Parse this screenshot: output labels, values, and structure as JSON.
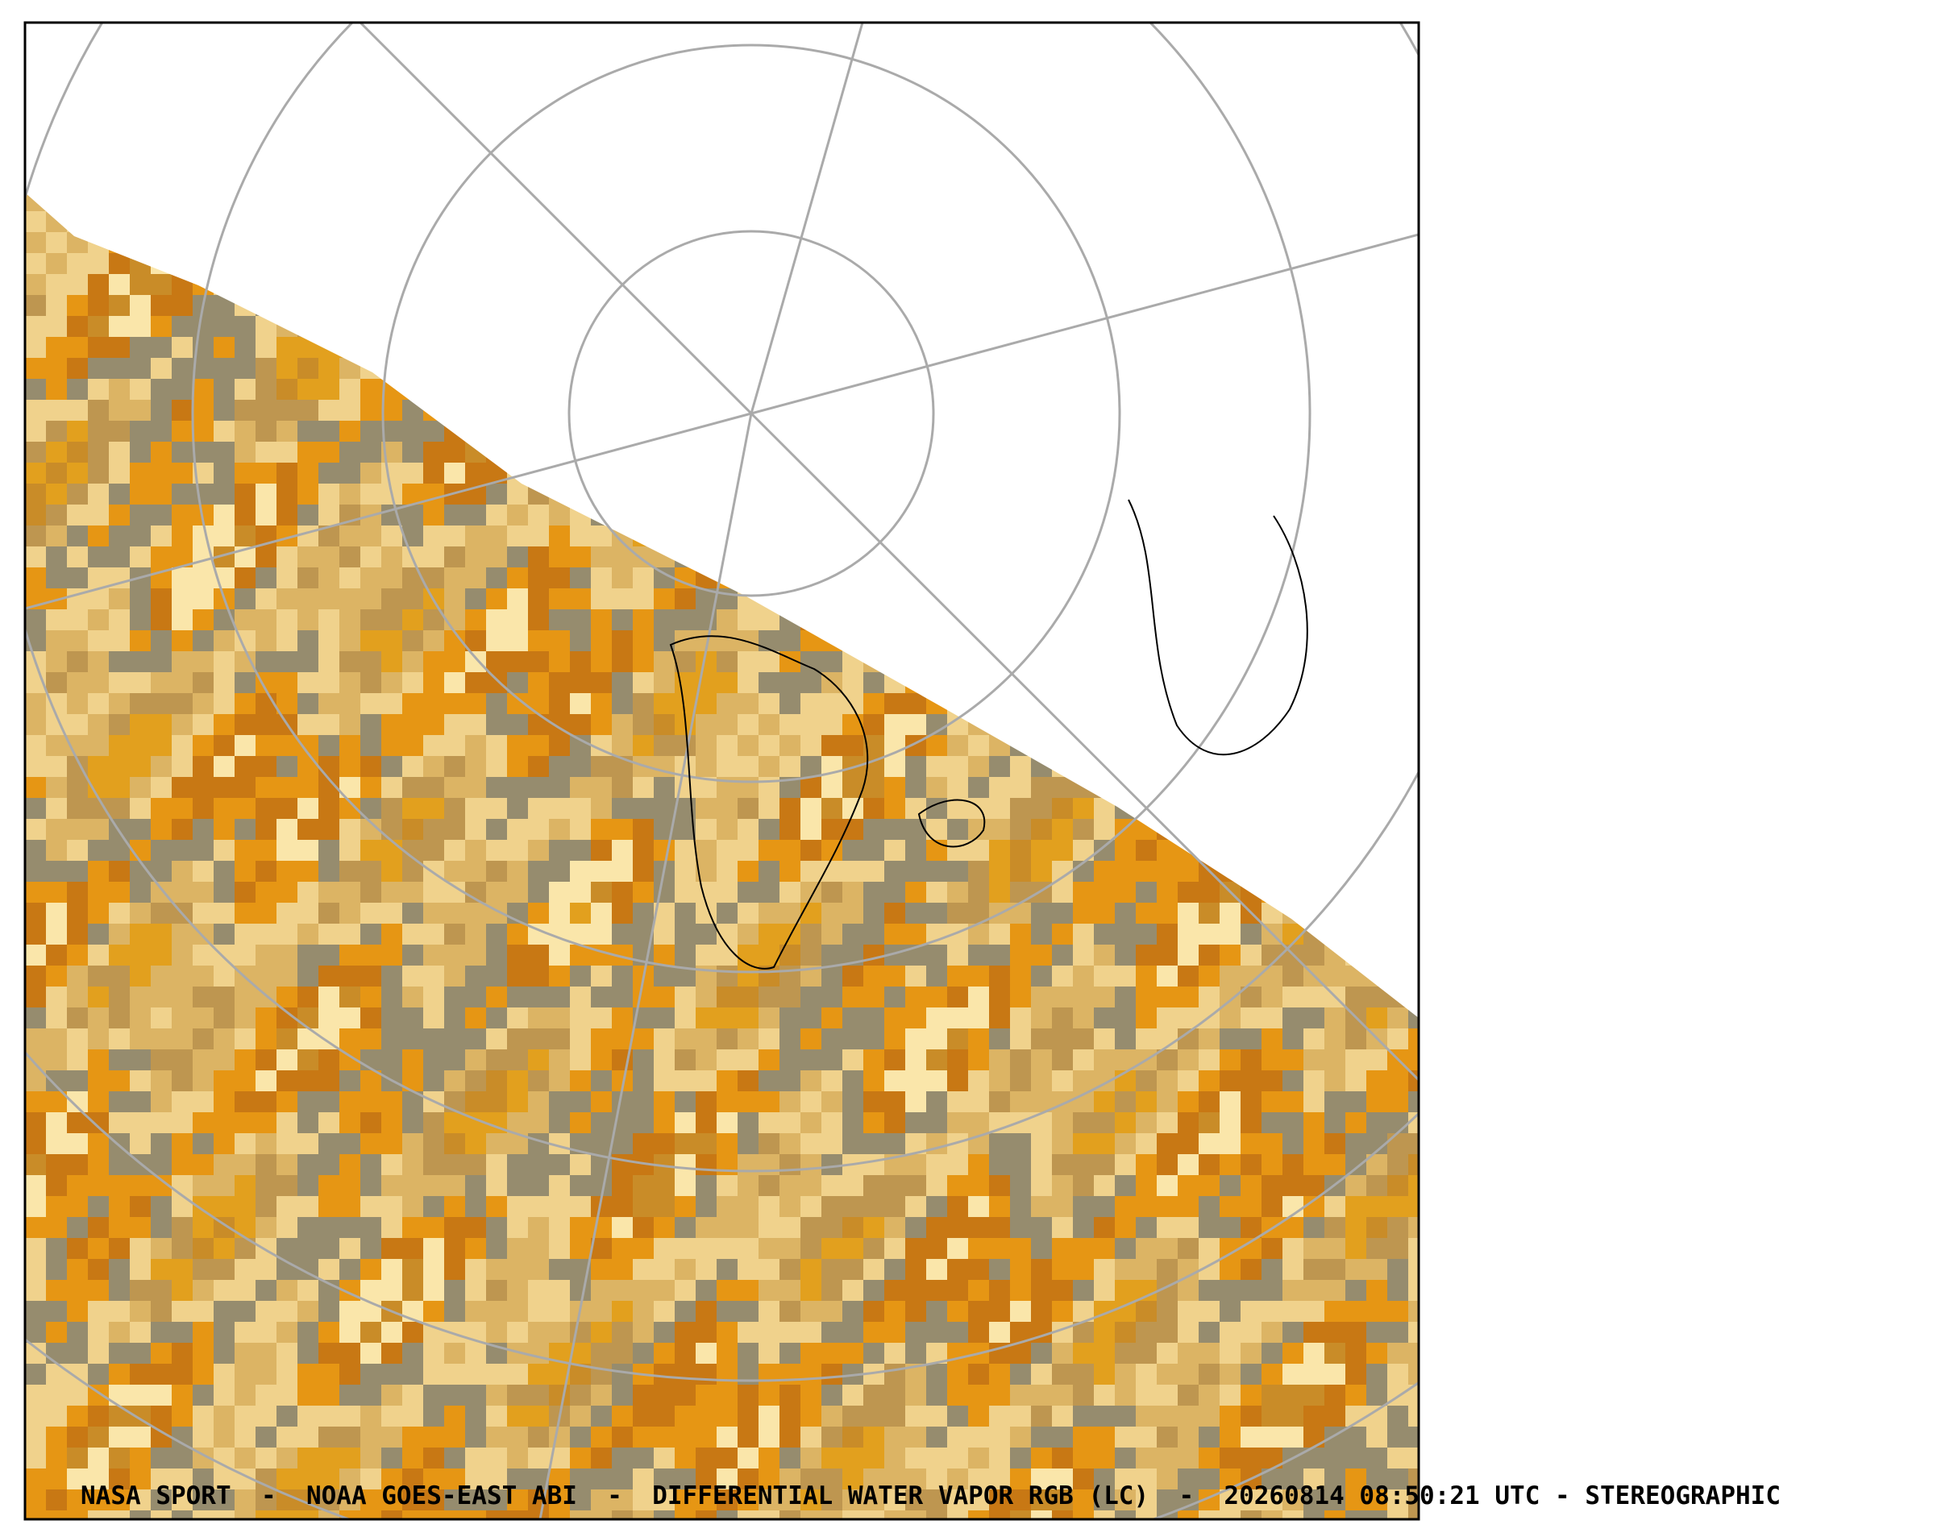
{
  "caption": "NASA SPORT  -  NOAA GOES-EAST ABI  -  DIFFERENTIAL WATER VAPOR RGB (LC)  -  20260814 08:50:21 UTC - STEREOGRAPHIC"
}
